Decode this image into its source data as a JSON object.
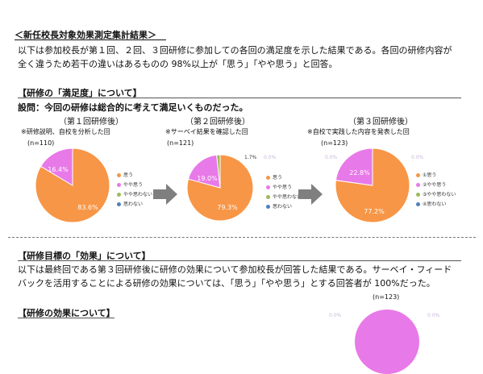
{
  "page_heading": "＜新任校長対象効果測定集計結果＞",
  "intro": {
    "line1": "以下は参加校長が第１回、２回、３回研修に参加しての各回の満足度を示した結果である。各回の研修内容が",
    "line2": "全く違うため若干の違いはあるものの 98%以上が「思う」「やや思う」と回答。"
  },
  "satisfaction": {
    "heading": "【研修の「満足度」について】",
    "question": "設問：今回の研修は総合的に考えて満足いくものだった。"
  },
  "colors": {
    "agree": "#F79646",
    "somewhat_agree": "#E879E8",
    "somewhat_disagree": "#9BBB59",
    "disagree": "#4F81BD"
  },
  "charts": [
    {
      "title": "（第１回研修後）",
      "note": "※研修説明、自校を分析した回",
      "n": "(n=110)",
      "legend": [
        "思う",
        "やや思う",
        "やや思わない",
        "思わない"
      ],
      "labels": [
        "83.6%",
        "16.4%"
      ]
    },
    {
      "title": "（第２回研修後）",
      "note": "※サーベイ結果を確認した回",
      "n": "(n=121)",
      "legend": [
        "思う",
        "やや思う",
        "やや思わない",
        "思わない"
      ],
      "labels": [
        "79.3%",
        "19.0%",
        "1.7%"
      ],
      "faint": "0.0%"
    },
    {
      "title": "（第３回研修後）",
      "note": "※自校で実践した内容を発表した回",
      "n": "(n=123)",
      "legend": [
        "①思う",
        "②やや思う",
        "③やや思わない",
        "④思わない"
      ],
      "labels": [
        "77.2%",
        "22.8%"
      ],
      "faint": [
        "0.0%",
        "0.0%"
      ]
    }
  ],
  "chart_data": [
    {
      "type": "pie",
      "categories": [
        "思う",
        "やや思う",
        "やや思わない",
        "思わない"
      ],
      "values": [
        83.6,
        16.4,
        0,
        0
      ],
      "title": "（第１回研修後）"
    },
    {
      "type": "pie",
      "categories": [
        "思う",
        "やや思う",
        "やや思わない",
        "思わない"
      ],
      "values": [
        79.3,
        19.0,
        1.7,
        0.0
      ],
      "title": "（第２回研修後）"
    },
    {
      "type": "pie",
      "categories": [
        "①思う",
        "②やや思う",
        "③やや思わない",
        "④思わない"
      ],
      "values": [
        77.2,
        22.8,
        0.0,
        0.0
      ],
      "title": "（第３回研修後）"
    }
  ],
  "effect": {
    "heading": "【研修目標の「効果」について】",
    "line1": "以下は最終回である第３回研修後に研修の効果について参加校長が回答した結果である。サーベイ・フィード",
    "line2": "バックを活用することによる研修の効果については、「思う」「やや思う」とする回答者が 100%だった。"
  },
  "bottom": {
    "n": "(n=123)",
    "heading": "【研修の効果について】",
    "faint": [
      "0.0%",
      "0.0%"
    ]
  }
}
